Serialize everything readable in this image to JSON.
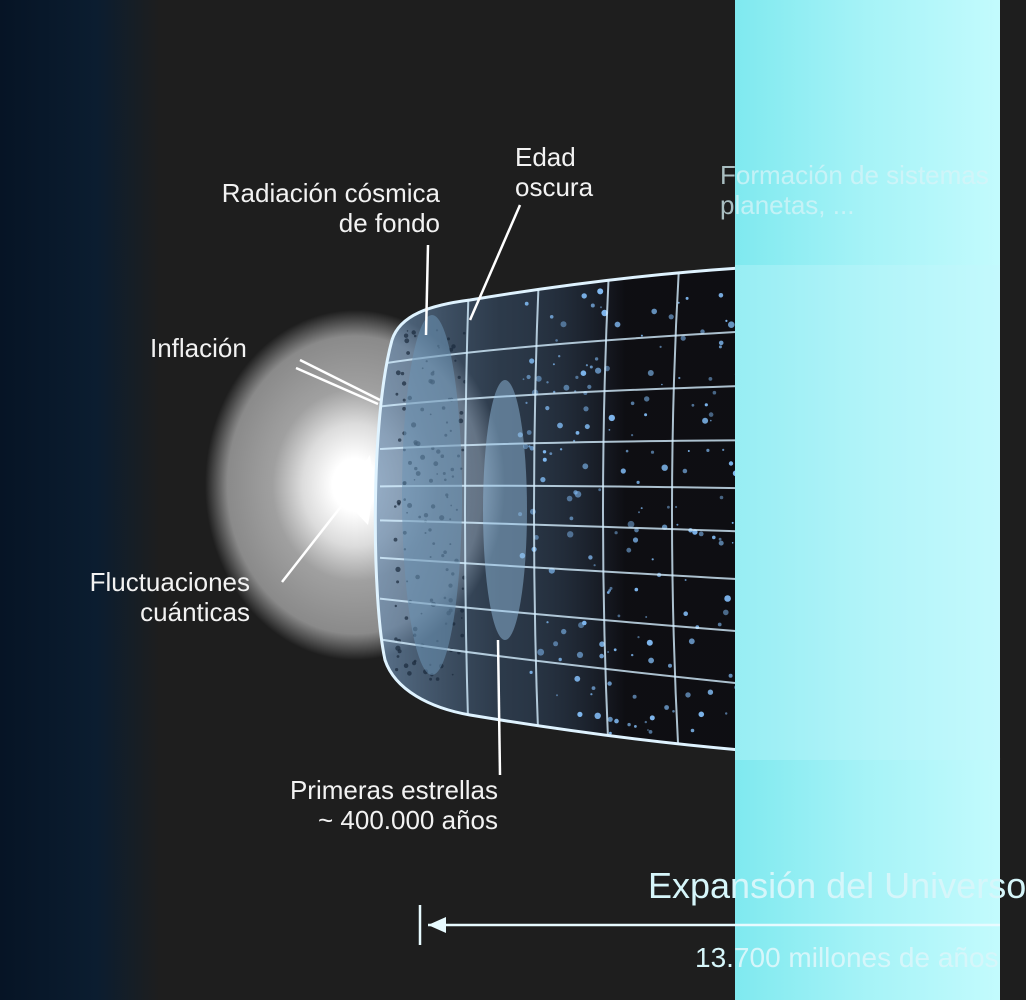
{
  "labels": {
    "cmb": {
      "line1": "Radiación cósmica",
      "line2": "de fondo"
    },
    "dark_age": {
      "line1": "Edad",
      "line2": "oscura"
    },
    "formation": {
      "line1": "Formación de sistemas",
      "line2": "planetas, ..."
    },
    "inflation": "Inflación",
    "quantum": {
      "line1": "Fluctuaciones",
      "line2": "cuánticas"
    },
    "first_stars": {
      "line1": "Primeras estrellas",
      "line2": "~ 400.000 años"
    },
    "expansion": "Expansión del Universo",
    "age": "13.700 millones de años"
  },
  "colors": {
    "background": "#1e1e1e",
    "left_edge": "#0a1a2c",
    "halo_outer": "#8a8a8a",
    "halo_inner": "#ffffff",
    "grid": "#d4efff",
    "starfield": "#7fb8f0",
    "right_glow": "#8ff4f8",
    "label_text": "#f2f2f2"
  },
  "icons": {
    "arrow": "left-arrow-icon"
  }
}
